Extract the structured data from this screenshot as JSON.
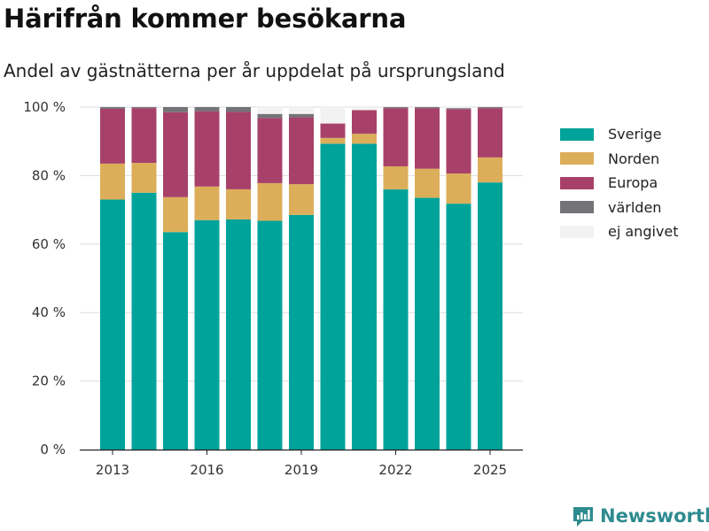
{
  "header": {
    "title": "Härifrån kommer besökarna",
    "subtitle": "Andel av gästnätterna per år uppdelat på ursprungsland"
  },
  "brand": {
    "name": "Newsworthy"
  },
  "chart_data": {
    "type": "bar",
    "stacked": true,
    "x": [
      2013,
      2014,
      2015,
      2016,
      2017,
      2018,
      2019,
      2020,
      2021,
      2022,
      2023,
      2024,
      2025
    ],
    "series": [
      {
        "name": "Sverige",
        "color": "#00a39a",
        "values": [
          73.0,
          75.0,
          63.5,
          67.0,
          67.2,
          66.8,
          68.5,
          89.3,
          89.3,
          76.0,
          73.5,
          71.8,
          78.0
        ]
      },
      {
        "name": "Norden",
        "color": "#dcae5a",
        "values": [
          10.5,
          8.7,
          10.2,
          9.8,
          8.8,
          11.0,
          9.0,
          1.7,
          2.9,
          6.7,
          8.5,
          8.8,
          7.3
        ]
      },
      {
        "name": "Europa",
        "color": "#a8416a",
        "values": [
          16.0,
          16.0,
          24.8,
          22.0,
          22.6,
          19.0,
          19.5,
          4.2,
          6.9,
          17.0,
          17.7,
          18.8,
          14.4
        ]
      },
      {
        "name": "världen",
        "color": "#737378",
        "values": [
          0.5,
          0.3,
          1.5,
          1.2,
          1.4,
          1.2,
          1.0,
          0.0,
          0.0,
          0.3,
          0.3,
          0.3,
          0.3
        ]
      },
      {
        "name": "ej angivet",
        "color": "#f2f2f2",
        "values": [
          0.0,
          0.0,
          0.0,
          0.0,
          0.0,
          2.0,
          2.0,
          4.8,
          0.9,
          0.0,
          0.0,
          0.3,
          0.0
        ]
      }
    ],
    "ylim": [
      0,
      100
    ],
    "y_ticks": [
      0,
      20,
      40,
      60,
      80,
      100
    ],
    "y_tick_labels": [
      "0 %",
      "20 %",
      "40 %",
      "60 %",
      "80 %",
      "100 %"
    ],
    "x_ticks": [
      2013,
      2016,
      2019,
      2022,
      2025
    ],
    "x_tick_labels": [
      "2013",
      "2016",
      "2019",
      "2022",
      "2025"
    ],
    "legend_position": "right",
    "grid": true
  }
}
